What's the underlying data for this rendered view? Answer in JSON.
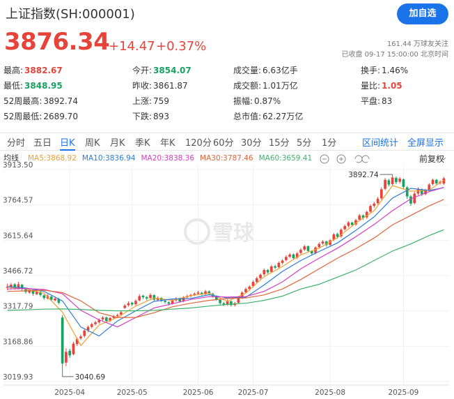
{
  "header": {
    "title": "上证指数(SH:000001)",
    "button": "加自选",
    "price": "3876.34",
    "change": "+14.47",
    "change_pct": "+0.37%",
    "followers": "161.44 万球友关注",
    "status": "已收盘 09-17 15:00:00 北京时间"
  },
  "stats": [
    [
      {
        "label": "最高:",
        "value": "3882.67",
        "color": "#e6443a"
      },
      {
        "label": "今开:",
        "value": "3854.07",
        "color": "#19a15f"
      },
      {
        "label": "成交量:",
        "value": "6.63亿手",
        "color": "#333333"
      },
      {
        "label": "换手:",
        "value": "1.46%",
        "color": "#333333"
      }
    ],
    [
      {
        "label": "最低:",
        "value": "3848.95",
        "color": "#19a15f"
      },
      {
        "label": "昨收:",
        "value": "3861.87",
        "color": "#333333"
      },
      {
        "label": "成交额:",
        "value": "1.01万亿",
        "color": "#333333"
      },
      {
        "label": "量比:",
        "value": "1.05",
        "color": "#e6443a"
      }
    ],
    [
      {
        "label": "52周最高:",
        "value": "3892.74",
        "color": "#333333"
      },
      {
        "label": "上涨:",
        "value": "759",
        "color": "#333333"
      },
      {
        "label": "振幅:",
        "value": "0.87%",
        "color": "#333333"
      },
      {
        "label": "平盘:",
        "value": "83",
        "color": "#333333"
      }
    ],
    [
      {
        "label": "52周最低:",
        "value": "2689.70",
        "color": "#333333"
      },
      {
        "label": "下跌:",
        "value": "893",
        "color": "#333333"
      },
      {
        "label": "总市值:",
        "value": "62.27万亿",
        "color": "#333333"
      }
    ]
  ],
  "tabs": [
    "分时",
    "五日",
    "日K",
    "周K",
    "月K",
    "季K",
    "年K",
    "120分",
    "60分",
    "30分",
    "15分",
    "5分",
    "1分"
  ],
  "active_tab": 2,
  "tools": [
    "区间统计",
    "全屏显示"
  ],
  "adjust": "前复权",
  "watermark": "雪球",
  "chart_data": {
    "type": "candlestick",
    "ma_label": "均线",
    "up_color": "#e6443a",
    "down_color": "#19a15f",
    "grid": true,
    "ylim": [
      3019.93,
      3913.5
    ],
    "yticks": [
      {
        "value": 3913.5,
        "label": "3913.50"
      },
      3764.57,
      3615.64,
      3466.72,
      3317.79,
      3168.86,
      3019.93
    ],
    "xlim": [
      0,
      119
    ],
    "xticks": [
      {
        "value": 17,
        "label": "2025-04"
      },
      {
        "value": 34,
        "label": "2025-05"
      },
      {
        "value": 52,
        "label": "2025-06"
      },
      {
        "value": 67,
        "label": "2025-07"
      },
      {
        "value": 88,
        "label": "2025-08"
      },
      {
        "value": 108,
        "label": "2025-09"
      }
    ],
    "annotations": [
      {
        "text": "3892.74",
        "x": 105,
        "y": 3892.74
      },
      {
        "text": "3040.69",
        "x": 15,
        "y": 3040.69
      }
    ],
    "candles": [
      [
        3415,
        3432,
        3405,
        3420
      ],
      [
        3418,
        3436,
        3410,
        3428
      ],
      [
        3430,
        3435,
        3408,
        3415
      ],
      [
        3412,
        3440,
        3408,
        3430
      ],
      [
        3428,
        3432,
        3402,
        3410
      ],
      [
        3408,
        3415,
        3390,
        3398
      ],
      [
        3395,
        3412,
        3390,
        3405
      ],
      [
        3402,
        3406,
        3382,
        3390
      ],
      [
        3388,
        3408,
        3384,
        3400
      ],
      [
        3398,
        3402,
        3378,
        3385
      ],
      [
        3383,
        3388,
        3365,
        3372
      ],
      [
        3370,
        3388,
        3366,
        3380
      ],
      [
        3378,
        3382,
        3358,
        3365
      ],
      [
        3362,
        3378,
        3358,
        3370
      ],
      [
        3368,
        3372,
        3345,
        3352
      ],
      [
        3290,
        3300,
        3040.69,
        3096
      ],
      [
        3100,
        3160,
        3085,
        3145
      ],
      [
        3150,
        3158,
        3120,
        3130
      ],
      [
        3135,
        3188,
        3130,
        3180
      ],
      [
        3178,
        3206,
        3170,
        3200
      ],
      [
        3202,
        3218,
        3195,
        3210
      ],
      [
        3212,
        3240,
        3205,
        3235
      ],
      [
        3236,
        3256,
        3228,
        3250
      ],
      [
        3250,
        3268,
        3244,
        3262
      ],
      [
        3262,
        3276,
        3256,
        3270
      ],
      [
        3270,
        3286,
        3264,
        3280
      ],
      [
        3282,
        3296,
        3276,
        3290
      ],
      [
        3290,
        3294,
        3268,
        3275
      ],
      [
        3276,
        3292,
        3270,
        3288
      ],
      [
        3288,
        3300,
        3282,
        3295
      ],
      [
        3296,
        3306,
        3290,
        3300
      ],
      [
        3302,
        3318,
        3296,
        3312
      ],
      [
        3330,
        3346,
        3326,
        3340
      ],
      [
        3342,
        3358,
        3336,
        3350
      ],
      [
        3352,
        3356,
        3338,
        3345
      ],
      [
        3346,
        3366,
        3340,
        3360
      ],
      [
        3362,
        3388,
        3358,
        3380
      ],
      [
        3382,
        3386,
        3368,
        3375
      ],
      [
        3376,
        3380,
        3362,
        3370
      ],
      [
        3372,
        3392,
        3366,
        3385
      ],
      [
        3384,
        3388,
        3360,
        3365
      ],
      [
        3364,
        3378,
        3358,
        3372
      ],
      [
        3372,
        3376,
        3354,
        3360
      ],
      [
        3360,
        3364,
        3348,
        3355
      ],
      [
        3354,
        3358,
        3340,
        3348
      ],
      [
        3348,
        3368,
        3344,
        3362
      ],
      [
        3362,
        3376,
        3356,
        3370
      ],
      [
        3370,
        3374,
        3352,
        3358
      ],
      [
        3360,
        3380,
        3354,
        3375
      ],
      [
        3375,
        3386,
        3370,
        3380
      ],
      [
        3380,
        3390,
        3374,
        3385
      ],
      [
        3386,
        3396,
        3380,
        3390
      ],
      [
        3390,
        3402,
        3384,
        3395
      ],
      [
        3394,
        3398,
        3382,
        3388
      ],
      [
        3388,
        3406,
        3384,
        3400
      ],
      [
        3400,
        3404,
        3386,
        3392
      ],
      [
        3390,
        3394,
        3374,
        3380
      ],
      [
        3378,
        3382,
        3360,
        3365
      ],
      [
        3364,
        3368,
        3344,
        3350
      ],
      [
        3350,
        3356,
        3338,
        3345
      ],
      [
        3346,
        3366,
        3340,
        3360
      ],
      [
        3358,
        3362,
        3336,
        3342
      ],
      [
        3342,
        3356,
        3336,
        3350
      ],
      [
        3352,
        3376,
        3348,
        3370
      ],
      [
        3372,
        3400,
        3368,
        3395
      ],
      [
        3396,
        3416,
        3390,
        3410
      ],
      [
        3410,
        3426,
        3404,
        3420
      ],
      [
        3422,
        3446,
        3416,
        3440
      ],
      [
        3440,
        3462,
        3434,
        3455
      ],
      [
        3456,
        3476,
        3450,
        3470
      ],
      [
        3472,
        3496,
        3466,
        3490
      ],
      [
        3490,
        3494,
        3474,
        3480
      ],
      [
        3482,
        3512,
        3478,
        3505
      ],
      [
        3506,
        3512,
        3494,
        3500
      ],
      [
        3502,
        3526,
        3496,
        3520
      ],
      [
        3520,
        3536,
        3514,
        3530
      ],
      [
        3532,
        3552,
        3526,
        3545
      ],
      [
        3546,
        3562,
        3540,
        3555
      ],
      [
        3556,
        3560,
        3534,
        3540
      ],
      [
        3542,
        3566,
        3536,
        3560
      ],
      [
        3562,
        3582,
        3556,
        3575
      ],
      [
        3576,
        3596,
        3570,
        3590
      ],
      [
        3590,
        3594,
        3564,
        3570
      ],
      [
        3570,
        3574,
        3552,
        3560
      ],
      [
        3562,
        3590,
        3556,
        3585
      ],
      [
        3586,
        3606,
        3580,
        3600
      ],
      [
        3602,
        3616,
        3596,
        3610
      ],
      [
        3610,
        3614,
        3588,
        3595
      ],
      [
        3596,
        3620,
        3590,
        3615
      ],
      [
        3618,
        3646,
        3612,
        3640
      ],
      [
        3642,
        3648,
        3622,
        3630
      ],
      [
        3632,
        3666,
        3626,
        3660
      ],
      [
        3662,
        3682,
        3656,
        3675
      ],
      [
        3676,
        3696,
        3670,
        3690
      ],
      [
        3690,
        3694,
        3672,
        3680
      ],
      [
        3682,
        3706,
        3676,
        3700
      ],
      [
        3702,
        3726,
        3696,
        3720
      ],
      [
        3720,
        3724,
        3702,
        3710
      ],
      [
        3712,
        3740,
        3706,
        3735
      ],
      [
        3736,
        3766,
        3730,
        3760
      ],
      [
        3760,
        3778,
        3752,
        3770
      ],
      [
        3772,
        3798,
        3766,
        3790
      ],
      [
        3792,
        3838,
        3786,
        3830
      ],
      [
        3832,
        3878,
        3826,
        3870
      ],
      [
        3868,
        3874,
        3842,
        3850
      ],
      [
        3852,
        3892.74,
        3846,
        3880
      ],
      [
        3878,
        3884,
        3852,
        3860
      ],
      [
        3862,
        3882,
        3854,
        3875
      ],
      [
        3872,
        3876,
        3832,
        3840
      ],
      [
        3838,
        3844,
        3790,
        3800
      ],
      [
        3800,
        3806,
        3760,
        3770
      ],
      [
        3772,
        3820,
        3766,
        3812
      ],
      [
        3812,
        3838,
        3806,
        3830
      ],
      [
        3830,
        3834,
        3802,
        3810
      ],
      [
        3810,
        3832,
        3804,
        3825
      ],
      [
        3826,
        3856,
        3820,
        3850
      ],
      [
        3852,
        3876,
        3846,
        3870
      ],
      [
        3870,
        3874,
        3848,
        3855
      ],
      [
        3856,
        3868,
        3850,
        3861.87
      ],
      [
        3854.07,
        3882.67,
        3848.95,
        3876.34
      ]
    ],
    "ma_x": [
      0,
      5,
      10,
      15,
      20,
      25,
      30,
      35,
      40,
      45,
      50,
      55,
      60,
      65,
      70,
      75,
      80,
      85,
      90,
      95,
      100,
      105,
      110,
      115,
      119
    ],
    "series": [
      {
        "name": "MA5",
        "legend": "MA5:3868.92",
        "color": "#f0a030",
        "values": [
          3418,
          3410,
          3392,
          3313,
          3172,
          3258,
          3290,
          3338,
          3372,
          3362,
          3382,
          3392,
          3358,
          3392,
          3462,
          3505,
          3554,
          3582,
          3626,
          3688,
          3740,
          3846,
          3822,
          3826,
          3868.92
        ]
      },
      {
        "name": "MA10",
        "legend": "MA10:3836.94",
        "color": "#2b7bd6",
        "values": [
          3420,
          3414,
          3400,
          3360,
          3250,
          3212,
          3275,
          3318,
          3358,
          3368,
          3370,
          3386,
          3372,
          3375,
          3427,
          3484,
          3530,
          3568,
          3604,
          3657,
          3714,
          3793,
          3834,
          3825,
          3836.94
        ]
      },
      {
        "name": "MA20",
        "legend": "MA20:3838.36",
        "color": "#d63cc4",
        "values": [
          3410,
          3412,
          3408,
          3390,
          3320,
          3280,
          3250,
          3290,
          3330,
          3348,
          3366,
          3378,
          3376,
          3378,
          3400,
          3440,
          3495,
          3540,
          3582,
          3630,
          3682,
          3740,
          3790,
          3820,
          3838.36
        ]
      },
      {
        "name": "MA30",
        "legend": "MA30:3787.46",
        "color": "#e0653a",
        "values": [
          3400,
          3402,
          3405,
          3395,
          3360,
          3310,
          3290,
          3290,
          3310,
          3335,
          3350,
          3362,
          3370,
          3372,
          3385,
          3410,
          3450,
          3495,
          3540,
          3580,
          3625,
          3680,
          3720,
          3760,
          3787.46
        ]
      },
      {
        "name": "MA60",
        "legend": "MA60:3659.41",
        "color": "#3db36b",
        "values": [
          3320,
          3322,
          3325,
          3326,
          3324,
          3320,
          3318,
          3318,
          3320,
          3325,
          3330,
          3338,
          3345,
          3350,
          3362,
          3380,
          3410,
          3430,
          3460,
          3490,
          3530,
          3570,
          3600,
          3635,
          3659.41
        ]
      }
    ]
  }
}
